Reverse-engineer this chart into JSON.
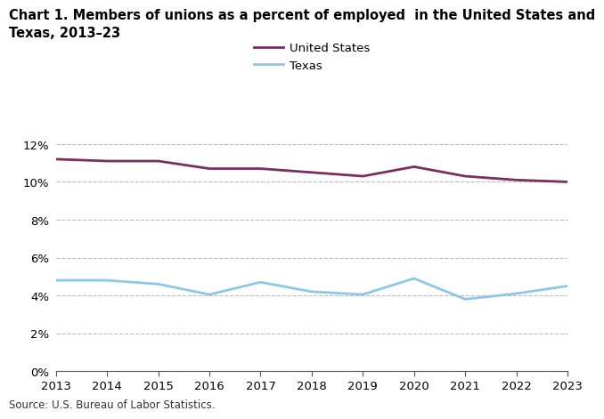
{
  "title_line1": "Chart 1. Members of unions as a percent of employed  in the United States and",
  "title_line2": "Texas, 2013–23",
  "years": [
    2013,
    2014,
    2015,
    2016,
    2017,
    2018,
    2019,
    2020,
    2021,
    2022,
    2023
  ],
  "us_values": [
    11.2,
    11.1,
    11.1,
    10.7,
    10.7,
    10.5,
    10.3,
    10.8,
    10.3,
    10.1,
    10.0
  ],
  "tx_values": [
    4.8,
    4.8,
    4.6,
    4.05,
    4.7,
    4.2,
    4.05,
    4.9,
    3.8,
    4.1,
    4.5
  ],
  "us_color": "#7B2D5E",
  "tx_color": "#8DC8E8",
  "us_label": "United States",
  "tx_label": "Texas",
  "ylim": [
    0,
    13
  ],
  "yticks": [
    0,
    2,
    4,
    6,
    8,
    10,
    12
  ],
  "source": "Source: U.S. Bureau of Labor Statistics.",
  "bg_color": "#FFFFFF",
  "grid_color": "#BBBBBB",
  "line_width": 2.0,
  "title_fontsize": 10.5,
  "legend_fontsize": 9.5,
  "tick_fontsize": 9.5,
  "source_fontsize": 8.5
}
